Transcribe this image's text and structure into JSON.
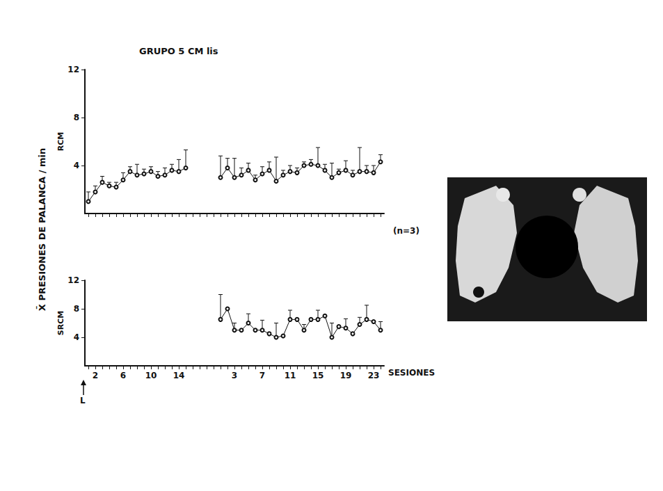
{
  "chart_data": [
    {
      "type": "line",
      "title": "GRUPO 5 CM lis",
      "ylabel": "RCM",
      "categories": [
        null,
        "2",
        null,
        null,
        null,
        "6",
        null,
        null,
        null,
        "10",
        null,
        null,
        null,
        "14",
        null,
        null,
        null,
        null,
        null,
        null,
        null,
        "3",
        null,
        null,
        null,
        "7",
        null,
        null,
        null,
        "11",
        null,
        null,
        null,
        "15",
        null,
        null,
        null,
        "19",
        null,
        null,
        null,
        "23",
        null
      ],
      "values": [
        1.0,
        1.8,
        2.6,
        2.3,
        2.2,
        2.8,
        3.5,
        3.2,
        3.3,
        3.5,
        3.1,
        3.2,
        3.6,
        3.5,
        3.8,
        null,
        null,
        null,
        null,
        3.0,
        3.8,
        3.0,
        3.2,
        3.6,
        2.8,
        3.3,
        3.6,
        2.7,
        3.2,
        3.5,
        3.4,
        4.0,
        4.1,
        4.0,
        3.6,
        3.0,
        3.4,
        3.6,
        3.2,
        3.5,
        3.5,
        3.4,
        4.3
      ],
      "errors": [
        0.8,
        0.5,
        0.5,
        0.3,
        0.4,
        0.6,
        0.4,
        0.9,
        0.4,
        0.4,
        0.4,
        0.6,
        0.5,
        1.0,
        1.5,
        null,
        null,
        null,
        null,
        1.8,
        0.8,
        1.6,
        0.6,
        0.6,
        0.4,
        0.6,
        0.7,
        2.0,
        0.4,
        0.5,
        0.4,
        0.3,
        0.4,
        1.5,
        0.5,
        1.2,
        0.3,
        0.8,
        0.4,
        2.0,
        0.5,
        0.6,
        0.6
      ],
      "color": "#111111",
      "marker": "circle",
      "line_style": "solid",
      "ylim": [
        0,
        12
      ],
      "yticks": [
        4,
        8,
        12
      ],
      "grid": false,
      "tick_labels": "y",
      "annotations": [
        "(n=3)"
      ]
    },
    {
      "type": "line",
      "ylabel": "SRCM",
      "shared_ylabel": "X̄ PRESIONES DE PALANCA / min",
      "xlabel": "SESIONES",
      "categories": [
        null,
        "2",
        null,
        null,
        null,
        "6",
        null,
        null,
        null,
        "10",
        null,
        null,
        null,
        "14",
        null,
        null,
        null,
        null,
        null,
        null,
        null,
        "3",
        null,
        null,
        null,
        "7",
        null,
        null,
        null,
        "11",
        null,
        null,
        null,
        "15",
        null,
        null,
        null,
        "19",
        null,
        null,
        null,
        "23",
        null
      ],
      "values": [
        null,
        null,
        null,
        null,
        null,
        null,
        null,
        null,
        null,
        null,
        null,
        null,
        null,
        null,
        null,
        null,
        null,
        null,
        null,
        6.5,
        8.0,
        5.0,
        5.0,
        6.0,
        5.0,
        5.0,
        4.5,
        4.0,
        4.2,
        6.5,
        6.5,
        5.0,
        6.5,
        6.5,
        7.0,
        4.0,
        5.5,
        5.3,
        4.5,
        5.8,
        6.5,
        6.2,
        5.0
      ],
      "errors": [
        null,
        null,
        null,
        null,
        null,
        null,
        null,
        null,
        null,
        null,
        null,
        null,
        null,
        null,
        null,
        null,
        null,
        null,
        null,
        3.5,
        0,
        1.0,
        0,
        1.3,
        0,
        1.4,
        0,
        2.0,
        0,
        1.3,
        0,
        0.8,
        0,
        1.3,
        0,
        2.0,
        0,
        1.3,
        0,
        1.0,
        2.0,
        0,
        1.2
      ],
      "color": "#111111",
      "marker": "circle",
      "line_style": "solid",
      "ylim": [
        0,
        12
      ],
      "yticks": [
        4,
        8,
        12
      ],
      "grid": false,
      "annotations": [
        "L"
      ]
    }
  ]
}
